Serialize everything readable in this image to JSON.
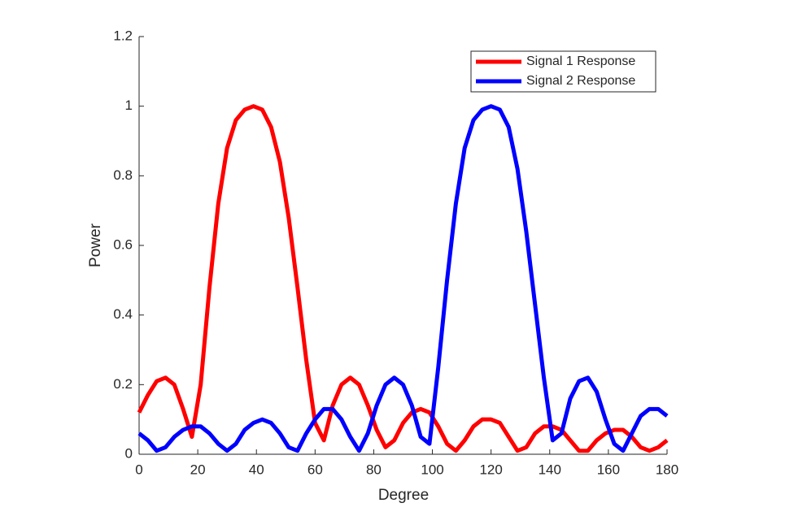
{
  "chart_data": {
    "type": "line",
    "x_label": "Degree",
    "y_label": "Power",
    "x": [
      0,
      3,
      6,
      9,
      12,
      15,
      18,
      21,
      24,
      27,
      30,
      33,
      36,
      39,
      42,
      45,
      48,
      51,
      54,
      57,
      60,
      63,
      66,
      69,
      72,
      75,
      78,
      81,
      84,
      87,
      90,
      93,
      96,
      99,
      102,
      105,
      108,
      111,
      114,
      117,
      120,
      123,
      126,
      129,
      132,
      135,
      138,
      141,
      144,
      147,
      150,
      153,
      156,
      159,
      162,
      165,
      168,
      171,
      174,
      177,
      180
    ],
    "series": [
      {
        "name": "Signal 1 Response",
        "color": "#ff0000",
        "values": [
          0.12,
          0.17,
          0.21,
          0.22,
          0.2,
          0.13,
          0.05,
          0.2,
          0.48,
          0.72,
          0.88,
          0.96,
          0.99,
          1.0,
          0.99,
          0.94,
          0.84,
          0.68,
          0.48,
          0.27,
          0.09,
          0.04,
          0.14,
          0.2,
          0.22,
          0.2,
          0.14,
          0.07,
          0.02,
          0.04,
          0.09,
          0.12,
          0.13,
          0.12,
          0.08,
          0.03,
          0.01,
          0.04,
          0.08,
          0.1,
          0.1,
          0.09,
          0.05,
          0.01,
          0.02,
          0.06,
          0.08,
          0.08,
          0.07,
          0.04,
          0.01,
          0.01,
          0.04,
          0.06,
          0.07,
          0.07,
          0.05,
          0.02,
          0.01,
          0.02,
          0.04
        ]
      },
      {
        "name": "Signal 2 Response",
        "color": "#0000ff",
        "values": [
          0.06,
          0.04,
          0.01,
          0.02,
          0.05,
          0.07,
          0.08,
          0.08,
          0.06,
          0.03,
          0.01,
          0.03,
          0.07,
          0.09,
          0.1,
          0.09,
          0.06,
          0.02,
          0.01,
          0.06,
          0.1,
          0.13,
          0.13,
          0.1,
          0.05,
          0.01,
          0.06,
          0.14,
          0.2,
          0.22,
          0.2,
          0.14,
          0.05,
          0.03,
          0.25,
          0.5,
          0.72,
          0.88,
          0.96,
          0.99,
          1.0,
          0.99,
          0.94,
          0.82,
          0.64,
          0.43,
          0.22,
          0.04,
          0.06,
          0.16,
          0.21,
          0.22,
          0.18,
          0.1,
          0.03,
          0.01,
          0.06,
          0.11,
          0.13,
          0.13,
          0.11
        ]
      }
    ],
    "xlim": [
      0,
      180
    ],
    "xticks": [
      0,
      20,
      40,
      60,
      80,
      100,
      120,
      140,
      160,
      180
    ],
    "ylim": [
      0,
      1.2
    ],
    "yticks": [
      0,
      0.2,
      0.4,
      0.6,
      0.8,
      1,
      1.2
    ],
    "legend_position": "upper right"
  }
}
